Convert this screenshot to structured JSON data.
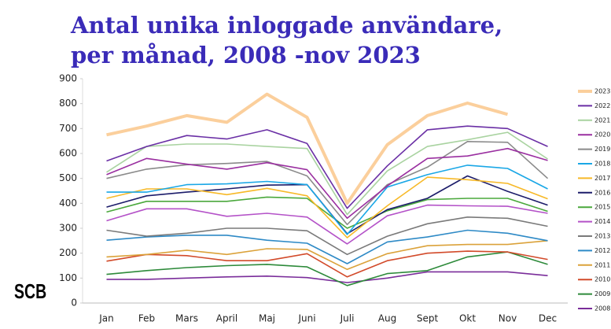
{
  "chart_data": {
    "type": "line",
    "title": [
      "Antal unika inloggade användare,",
      "per månad, 2008 -nov 2023"
    ],
    "logo": "SCB",
    "categories": [
      "Jan",
      "Feb",
      "Mars",
      "April",
      "Maj",
      "Juni",
      "Juli",
      "Aug",
      "Sept",
      "Okt",
      "Nov",
      "Dec"
    ],
    "ylim": [
      0,
      900
    ],
    "yticks": [
      0,
      100,
      200,
      300,
      400,
      500,
      600,
      700,
      800,
      900
    ],
    "grid": false,
    "legend": "right",
    "series": [
      {
        "name": "2023",
        "color": "#fbcf9c",
        "values": [
          675,
          710,
          752,
          725,
          838,
          745,
          400,
          635,
          752,
          802,
          757,
          null
        ]
      },
      {
        "name": "2022",
        "color": "#6a2fa5",
        "values": [
          570,
          628,
          672,
          658,
          695,
          640,
          380,
          550,
          695,
          710,
          700,
          628
        ]
      },
      {
        "name": "2021",
        "color": "#a9d3a0",
        "values": [
          525,
          628,
          638,
          638,
          628,
          620,
          355,
          530,
          628,
          655,
          685,
          578
        ]
      },
      {
        "name": "2020",
        "color": "#9a2fa0",
        "values": [
          515,
          580,
          557,
          537,
          563,
          535,
          340,
          470,
          580,
          590,
          620,
          572
        ]
      },
      {
        "name": "2019",
        "color": "#8a8a8a",
        "values": [
          500,
          537,
          555,
          560,
          568,
          510,
          315,
          475,
          545,
          648,
          645,
          500
        ]
      },
      {
        "name": "2018",
        "color": "#1aa7e6",
        "values": [
          445,
          445,
          475,
          478,
          488,
          475,
          275,
          465,
          515,
          553,
          540,
          458
        ]
      },
      {
        "name": "2017",
        "color": "#f7b928",
        "values": [
          420,
          458,
          458,
          435,
          460,
          430,
          262,
          390,
          505,
          495,
          480,
          418
        ]
      },
      {
        "name": "2016",
        "color": "#1c1c6a",
        "values": [
          385,
          430,
          445,
          458,
          473,
          475,
          278,
          375,
          420,
          510,
          448,
          393
        ]
      },
      {
        "name": "2015",
        "color": "#4aa83c",
        "values": [
          365,
          408,
          408,
          408,
          425,
          420,
          300,
          370,
          415,
          420,
          420,
          368
        ]
      },
      {
        "name": "2014",
        "color": "#b452c8",
        "values": [
          330,
          378,
          378,
          348,
          360,
          345,
          237,
          350,
          393,
          390,
          388,
          360
        ]
      },
      {
        "name": "2013",
        "color": "#7a7a7a",
        "values": [
          292,
          268,
          280,
          300,
          300,
          290,
          195,
          268,
          318,
          345,
          340,
          308
        ]
      },
      {
        "name": "2012",
        "color": "#2e8ac6",
        "values": [
          252,
          265,
          272,
          272,
          252,
          240,
          158,
          245,
          265,
          292,
          280,
          250
        ]
      },
      {
        "name": "2011",
        "color": "#dba23a",
        "values": [
          185,
          195,
          212,
          195,
          218,
          215,
          135,
          198,
          230,
          235,
          235,
          250
        ]
      },
      {
        "name": "2010",
        "color": "#d24a2a",
        "values": [
          168,
          195,
          190,
          170,
          170,
          198,
          105,
          170,
          200,
          208,
          205,
          175
        ]
      },
      {
        "name": "2009",
        "color": "#2d8a3a",
        "values": [
          115,
          130,
          142,
          150,
          155,
          145,
          70,
          118,
          130,
          185,
          205,
          155
        ]
      },
      {
        "name": "2008",
        "color": "#7a2d9a",
        "values": [
          95,
          95,
          100,
          105,
          108,
          102,
          82,
          100,
          125,
          125,
          125,
          110
        ]
      }
    ]
  }
}
